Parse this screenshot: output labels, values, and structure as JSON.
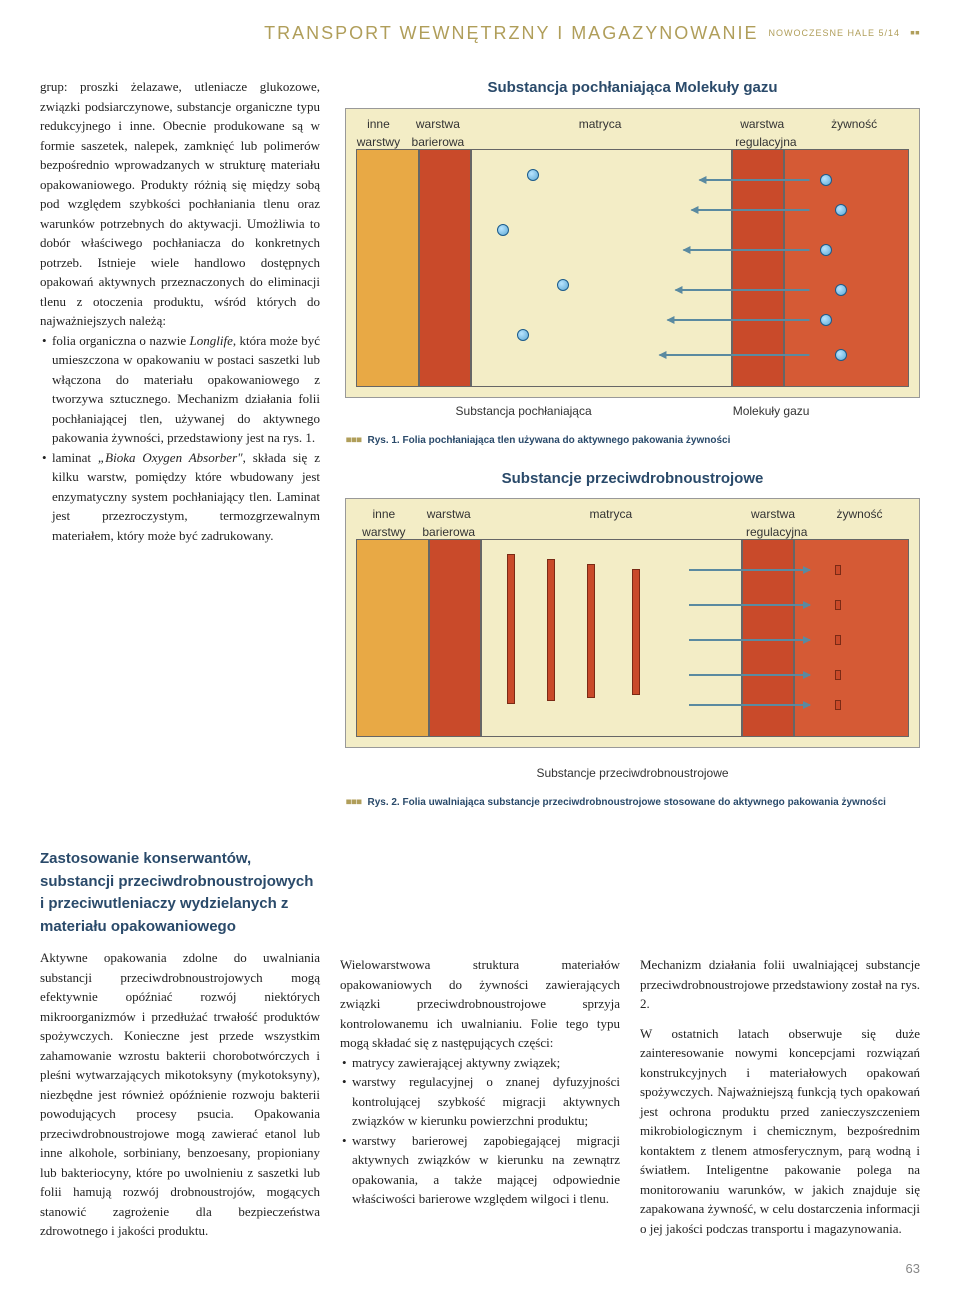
{
  "header": {
    "title": "TRANSPORT WEWNĘTRZNY I MAGAZYNOWANIE",
    "issue": "NOWOCZESNE HALE 5/14"
  },
  "left_col": {
    "intro": "grup: proszki żelazawe, utleniacze glukozowe, związki podsiarczynowe, substancje organiczne typu redukcyjnego i inne. Obecnie produkowane są w formie saszetek, nalepek, zamknięć lub polimerów bezpośrednio wprowadzanych w strukturę materiału opakowaniowego. Produkty różnią się między sobą pod względem szybkości pochłaniania tlenu oraz warunków potrzebnych do aktywacji. Umożliwia to dobór właściwego pochłaniacza do konkretnych potrzeb. Istnieje wiele handlowo dostępnych opakowań aktywnych przeznaczonych do eliminacji tlenu z otoczenia produktu, wśród których do najważniejszych należą:",
    "bullets": [
      "folia organiczna o nazwie <em>Longlife</em>, która może być umieszczona w opakowaniu w postaci saszetki lub włączona do materiału opakowaniowego z tworzywa sztucznego. Mechanizm działania folii pochłaniającej tlen, używanej do aktywnego pakowania żywności, przedstawiony jest na rys. 1.",
      "laminat <em>„Bioka Oxygen Absorber\"</em>, składa się z kilku warstw, pomiędzy które wbudowany jest enzymatyczny system pochłaniający tlen. Laminat jest przezroczystym, termozgrzewalnym materiałem, który może być zadrukowany."
    ],
    "section2_title": "Zastosowanie konserwantów, substancji przeciwdrobnoustrojowych i przeciwutleniaczy wydzielanych z materiału opakowaniowego",
    "section2_body": "Aktywne opakowania zdolne do uwalniania substancji przeciwdrobnoustrojowych mogą efektywnie opóźniać rozwój niektórych mikroorganizmów i przedłużać trwałość produktów spożywczych. Konieczne jest przede wszystkim zahamowanie wzrostu bakterii chorobotwórczych i pleśni wytwarzających mikotoksyny (mykotoksyny), niezbędne jest również opóźnienie rozwoju bakterii powodujących procesy psucia. Opakowania przeciwdrobnoustrojowe mogą zawierać etanol lub inne alkohole, sorbiniany, benzoesany, propioniany lub bakteriocyny, które po uwolnieniu z saszetki lub folii hamują rozwój drobnoustrojów, mogących stanowić zagrożenie dla bezpieczeństwa zdrowotnego i jakości produktu."
  },
  "fig1": {
    "title": "Substancja pochłaniająca Molekuły gazu",
    "layer_labels": [
      "inne warstwy",
      "warstwa barierowa",
      "matryca",
      "warstwa regulacyjna",
      "żywność"
    ],
    "layer_widths": [
      60,
      50,
      250,
      50,
      120
    ],
    "layer_colors": [
      "#e8a945",
      "#c94a2a",
      "#f3edc6",
      "#c94a2a",
      "#d55a35"
    ],
    "background": "#f3edc6",
    "border": "#999999",
    "molecule_color": "#5da9d4",
    "arrow_color": "#5a8aa0",
    "under_labels": [
      "Substancja pochłaniająca",
      "Molekuły gazu"
    ],
    "caption": "Rys. 1. Folia pochłaniająca tlen używana do aktywnego pakowania żywności"
  },
  "fig2": {
    "title": "Substancje przeciwdrobnoustrojowe",
    "layer_labels": [
      "inne warstwy",
      "warstwa barierowa",
      "matryca",
      "warstwa regulacyjna",
      "żywność"
    ],
    "layer_widths": [
      70,
      50,
      250,
      50,
      110
    ],
    "layer_colors": [
      "#e8a945",
      "#c94a2a",
      "#f3edc6",
      "#c94a2a",
      "#d55a35"
    ],
    "background": "#f3edc6",
    "border": "#999999",
    "antimicrobial_color": "#c94a2a",
    "arrow_color": "#5a8aa0",
    "under_label": "Substancje przeciwdrobnoustrojowe",
    "caption": "Rys. 2. Folia uwalniająca substancje przeciwdrobnoustrojowe stosowane do aktywnego pakowania żywności"
  },
  "lower": {
    "col2_intro": "Wielowarstwowa struktura materiałów opakowaniowych do żywności zawierających związki przeciwdrobnoustrojowe sprzyja kontrolowanemu ich uwalnianiu. Folie tego typu mogą składać się z następujących części:",
    "col2_bullets": [
      "matrycy zawierającej aktywny związek;",
      "warstwy regulacyjnej o znanej dyfuzyjności kontrolującej szybkość migracji aktywnych związków w kierunku powierzchni produktu;",
      "warstwy barierowej zapobiegającej migracji aktywnych związków w kierunku na zewnątrz opakowania, a także mającej odpowiednie właściwości barierowe względem wilgoci i tlenu."
    ],
    "col3_p1": "Mechanizm działania folii uwalniającej substancje przeciwdrobnoustrojowe przedstawiony został na rys. 2.",
    "col3_p2": "W ostatnich latach obserwuje się duże zainteresowanie nowymi koncepcjami rozwiązań konstrukcyjnych i materiałowych opakowań spożywczych. Najważniejszą funkcją tych opakowań jest ochrona produktu przed zanieczyszczeniem mikrobiologicznym i chemicznym, bezpośrednim kontaktem z tlenem atmosferycznym, parą wodną i światłem. Inteligentne pakowanie polega na monitorowaniu warunków, w jakich znajduje się zapakowana żywność, w celu dostarczenia informacji o jej jakości podczas transportu i magazynowania."
  },
  "page_number": "63"
}
